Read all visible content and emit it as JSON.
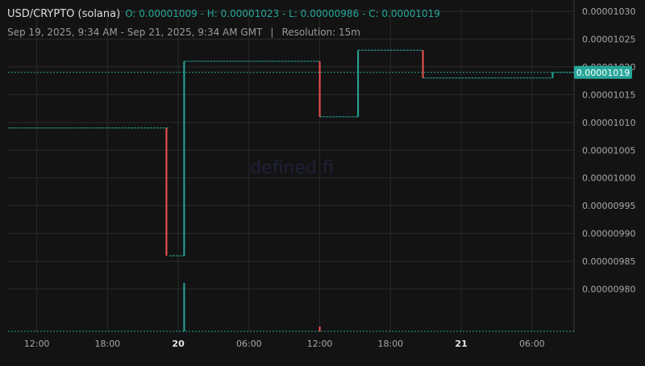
{
  "header": {
    "symbol": "USD/CRYPTO (solana)",
    "ohlc": "O: 0.00001009 - H: 0.00001023 - L: 0.00000986 - C: 0.00001019",
    "range": "Sep 19, 2025, 9:34 AM - Sep 21, 2025, 9:34 AM GMT",
    "separator": "|",
    "resolution": "Resolution: 15m"
  },
  "watermark": "defined.fi",
  "last_price_label": "0.00001019",
  "colors": {
    "background": "#131313",
    "grid": "#2b2b2b",
    "up": "#26a69a",
    "down": "#ef5350",
    "axis_text": "#a8a8a8",
    "watermark": "#1f2138"
  },
  "chart_data": {
    "type": "candlestick",
    "title": "USD/CRYPTO (solana)",
    "x_axis": {
      "type": "time",
      "range": [
        "2025-09-19T09:34",
        "2025-09-21T09:34"
      ],
      "tick_labels": [
        "12:00",
        "18:00",
        "20",
        "06:00",
        "12:00",
        "18:00",
        "21",
        "06:00"
      ],
      "tick_times": [
        "2025-09-19T12:00",
        "2025-09-19T18:00",
        "2025-09-20T00:00",
        "2025-09-20T06:00",
        "2025-09-20T12:00",
        "2025-09-20T18:00",
        "2025-09-21T00:00",
        "2025-09-21T06:00"
      ]
    },
    "y_axis": {
      "range": [
        9.75e-06,
        1.03e-05
      ],
      "tick_values": [
        9.8e-06,
        9.85e-06,
        9.9e-06,
        9.95e-06,
        1e-05,
        1.005e-05,
        1.01e-05,
        1.015e-05,
        1.02e-05,
        1.025e-05,
        1.03e-05
      ],
      "tick_labels": [
        "0.00000980",
        "0.00000985",
        "0.00000990",
        "0.00000995",
        "0.00001000",
        "0.00001005",
        "0.00001010",
        "0.00001015",
        "0.00001020",
        "0.00001025",
        "0.00001030"
      ]
    },
    "grid": true,
    "price_steps": [
      {
        "start": "2025-09-19T09:34",
        "end": "2025-09-19T23:15",
        "price": 1.009e-05
      },
      {
        "start": "2025-09-19T23:15",
        "end": "2025-09-20T00:30",
        "price": 9.86e-06
      },
      {
        "start": "2025-09-20T00:30",
        "end": "2025-09-20T12:00",
        "price": 1.021e-05
      },
      {
        "start": "2025-09-20T12:00",
        "end": "2025-09-20T15:15",
        "price": 1.011e-05
      },
      {
        "start": "2025-09-20T15:15",
        "end": "2025-09-20T20:45",
        "price": 1.023e-05
      },
      {
        "start": "2025-09-20T20:45",
        "end": "2025-09-21T07:45",
        "price": 1.018e-05
      },
      {
        "start": "2025-09-21T07:45",
        "end": "2025-09-21T09:34",
        "price": 1.019e-05
      }
    ],
    "candles": [
      {
        "time": "2025-09-19T23:00",
        "open": 1.009e-05,
        "close": 9.86e-06,
        "direction": "down"
      },
      {
        "time": "2025-09-20T00:30",
        "open": 9.86e-06,
        "close": 1.021e-05,
        "direction": "up"
      },
      {
        "time": "2025-09-20T12:00",
        "open": 1.021e-05,
        "close": 1.011e-05,
        "direction": "down"
      },
      {
        "time": "2025-09-20T15:15",
        "open": 1.011e-05,
        "close": 1.023e-05,
        "direction": "up"
      },
      {
        "time": "2025-09-20T20:45",
        "open": 1.023e-05,
        "close": 1.018e-05,
        "direction": "down"
      },
      {
        "time": "2025-09-21T07:45",
        "open": 1.018e-05,
        "close": 1.019e-05,
        "direction": "up"
      }
    ],
    "volume_spikes": [
      {
        "time": "2025-09-20T00:30",
        "relative": 1.0,
        "direction": "up"
      },
      {
        "time": "2025-09-20T12:00",
        "relative": 0.1,
        "direction": "down"
      }
    ],
    "last_price": 1.019e-05
  }
}
